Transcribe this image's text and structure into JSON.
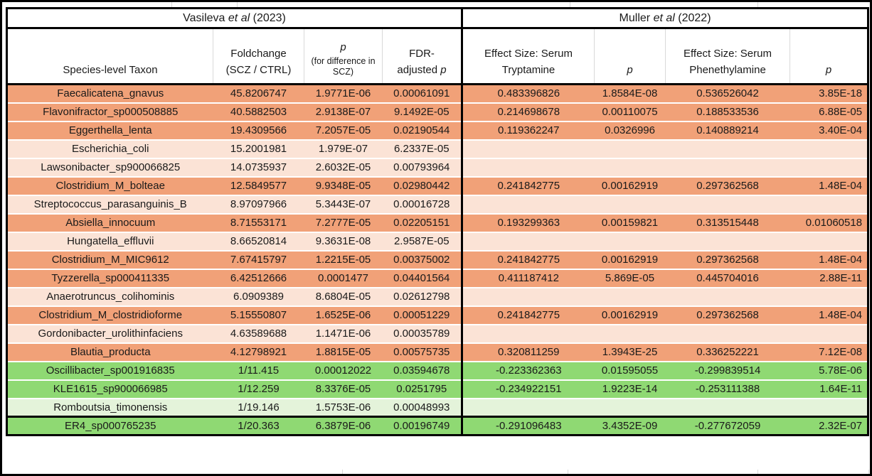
{
  "colors": {
    "row_orange_dark": "#F1A178",
    "row_orange_light": "#FBE3D6",
    "row_green_dark": "#8FD973",
    "row_green_light": "#E4F3DA",
    "table_border": "#000000",
    "header_gridline": "#D9D9D9",
    "row_gap": "#FFFFFF"
  },
  "studies": {
    "left": {
      "author": "Vasileva",
      "etal": "et al",
      "year": "(2023)"
    },
    "right": {
      "author": "Muller",
      "etal": "et al",
      "year": "(2022)"
    }
  },
  "columns": {
    "taxon": {
      "label": "Species-level Taxon"
    },
    "foldchange": {
      "line1": "Foldchange",
      "line2": "(SCZ / CTRL)"
    },
    "p_scz": {
      "p": "p",
      "sub": "(for difference in SCZ)"
    },
    "fdr": {
      "line1": "FDR-",
      "line2_pre": "adjusted",
      "p": "p"
    },
    "es_tryptamine": {
      "label": "Effect Size: Serum Tryptamine"
    },
    "p_tryptamine": {
      "p": "p"
    },
    "es_phenethylamine": {
      "label": "Effect Size: Serum Phenethylamine"
    },
    "p_phenethylamine": {
      "p": "p"
    }
  },
  "rows": [
    {
      "taxon": "Faecalicatena_gnavus",
      "foldchange": "45.8206747",
      "p_scz": "1.9771E-06",
      "fdr_p": "0.00061091",
      "es_tryptamine": "0.483396826",
      "p_tryptamine": "1.8584E-08",
      "es_phenethylamine": "0.536526042",
      "p_phenethylamine": "3.85E-18",
      "tone": "orange-dark"
    },
    {
      "taxon": "Flavonifractor_sp000508885",
      "foldchange": "40.5882503",
      "p_scz": "2.9138E-07",
      "fdr_p": "9.1492E-05",
      "es_tryptamine": "0.214698678",
      "p_tryptamine": "0.00110075",
      "es_phenethylamine": "0.188533536",
      "p_phenethylamine": "6.88E-05",
      "tone": "orange-dark"
    },
    {
      "taxon": "Eggerthella_lenta",
      "foldchange": "19.4309566",
      "p_scz": "7.2057E-05",
      "fdr_p": "0.02190544",
      "es_tryptamine": "0.119362247",
      "p_tryptamine": "0.0326996",
      "es_phenethylamine": "0.140889214",
      "p_phenethylamine": "3.40E-04",
      "tone": "orange-dark"
    },
    {
      "taxon": "Escherichia_coli",
      "foldchange": "15.2001981",
      "p_scz": "1.979E-07",
      "fdr_p": "6.2337E-05",
      "es_tryptamine": "",
      "p_tryptamine": "",
      "es_phenethylamine": "",
      "p_phenethylamine": "",
      "tone": "orange-light"
    },
    {
      "taxon": "Lawsonibacter_sp900066825",
      "foldchange": "14.0735937",
      "p_scz": "2.6032E-05",
      "fdr_p": "0.00793964",
      "es_tryptamine": "",
      "p_tryptamine": "",
      "es_phenethylamine": "",
      "p_phenethylamine": "",
      "tone": "orange-light"
    },
    {
      "taxon": "Clostridium_M_bolteae",
      "foldchange": "12.5849577",
      "p_scz": "9.9348E-05",
      "fdr_p": "0.02980442",
      "es_tryptamine": "0.241842775",
      "p_tryptamine": "0.00162919",
      "es_phenethylamine": "0.297362568",
      "p_phenethylamine": "1.48E-04",
      "tone": "orange-dark"
    },
    {
      "taxon": "Streptococcus_parasanguinis_B",
      "foldchange": "8.97097966",
      "p_scz": "5.3443E-07",
      "fdr_p": "0.00016728",
      "es_tryptamine": "",
      "p_tryptamine": "",
      "es_phenethylamine": "",
      "p_phenethylamine": "",
      "tone": "orange-light"
    },
    {
      "taxon": "Absiella_innocuum",
      "foldchange": "8.71553171",
      "p_scz": "7.2777E-05",
      "fdr_p": "0.02205151",
      "es_tryptamine": "0.193299363",
      "p_tryptamine": "0.00159821",
      "es_phenethylamine": "0.313515448",
      "p_phenethylamine": "0.01060518",
      "tone": "orange-dark"
    },
    {
      "taxon": "Hungatella_effluvii",
      "foldchange": "8.66520814",
      "p_scz": "9.3631E-08",
      "fdr_p": "2.9587E-05",
      "es_tryptamine": "",
      "p_tryptamine": "",
      "es_phenethylamine": "",
      "p_phenethylamine": "",
      "tone": "orange-light"
    },
    {
      "taxon": "Clostridium_M_MIC9612",
      "foldchange": "7.67415797",
      "p_scz": "1.2215E-05",
      "fdr_p": "0.00375002",
      "es_tryptamine": "0.241842775",
      "p_tryptamine": "0.00162919",
      "es_phenethylamine": "0.297362568",
      "p_phenethylamine": "1.48E-04",
      "tone": "orange-dark"
    },
    {
      "taxon": "Tyzzerella_sp000411335",
      "foldchange": "6.42512666",
      "p_scz": "0.0001477",
      "fdr_p": "0.04401564",
      "es_tryptamine": "0.411187412",
      "p_tryptamine": "5.869E-05",
      "es_phenethylamine": "0.445704016",
      "p_phenethylamine": "2.88E-11",
      "tone": "orange-dark"
    },
    {
      "taxon": "Anaerotruncus_colihominis",
      "foldchange": "6.0909389",
      "p_scz": "8.6804E-05",
      "fdr_p": "0.02612798",
      "es_tryptamine": "",
      "p_tryptamine": "",
      "es_phenethylamine": "",
      "p_phenethylamine": "",
      "tone": "orange-light"
    },
    {
      "taxon": "Clostridium_M_clostridioforme",
      "foldchange": "5.15550807",
      "p_scz": "1.6525E-06",
      "fdr_p": "0.00051229",
      "es_tryptamine": "0.241842775",
      "p_tryptamine": "0.00162919",
      "es_phenethylamine": "0.297362568",
      "p_phenethylamine": "1.48E-04",
      "tone": "orange-dark"
    },
    {
      "taxon": "Gordonibacter_urolithinfaciens",
      "foldchange": "4.63589688",
      "p_scz": "1.1471E-06",
      "fdr_p": "0.00035789",
      "es_tryptamine": "",
      "p_tryptamine": "",
      "es_phenethylamine": "",
      "p_phenethylamine": "",
      "tone": "orange-light"
    },
    {
      "taxon": "Blautia_producta",
      "foldchange": "4.12798921",
      "p_scz": "1.8815E-05",
      "fdr_p": "0.00575735",
      "es_tryptamine": "0.320811259",
      "p_tryptamine": "1.3943E-25",
      "es_phenethylamine": "0.336252221",
      "p_phenethylamine": "7.12E-08",
      "tone": "orange-dark"
    },
    {
      "taxon": "Oscillibacter_sp001916835",
      "foldchange": "1/11.415",
      "p_scz": "0.00012022",
      "fdr_p": "0.03594678",
      "es_tryptamine": "-0.223362363",
      "p_tryptamine": "0.01595055",
      "es_phenethylamine": "-0.299839514",
      "p_phenethylamine": "5.78E-06",
      "tone": "green-dark"
    },
    {
      "taxon": "KLE1615_sp900066985",
      "foldchange": "1/12.259",
      "p_scz": "8.3376E-05",
      "fdr_p": "0.0251795",
      "es_tryptamine": "-0.234922151",
      "p_tryptamine": "1.9223E-14",
      "es_phenethylamine": "-0.253111388",
      "p_phenethylamine": "1.64E-11",
      "tone": "green-dark"
    },
    {
      "taxon": "Romboutsia_timonensis",
      "foldchange": "1/19.146",
      "p_scz": "1.5753E-06",
      "fdr_p": "0.00048993",
      "es_tryptamine": "",
      "p_tryptamine": "",
      "es_phenethylamine": "",
      "p_phenethylamine": "",
      "tone": "green-light"
    },
    {
      "taxon": "ER4_sp000765235",
      "foldchange": "1/20.363",
      "p_scz": "6.3879E-06",
      "fdr_p": "0.00196749",
      "es_tryptamine": "-0.291096483",
      "p_tryptamine": "3.4352E-09",
      "es_phenethylamine": "-0.277672059",
      "p_phenethylamine": "2.32E-07",
      "tone": "green-dark"
    }
  ]
}
